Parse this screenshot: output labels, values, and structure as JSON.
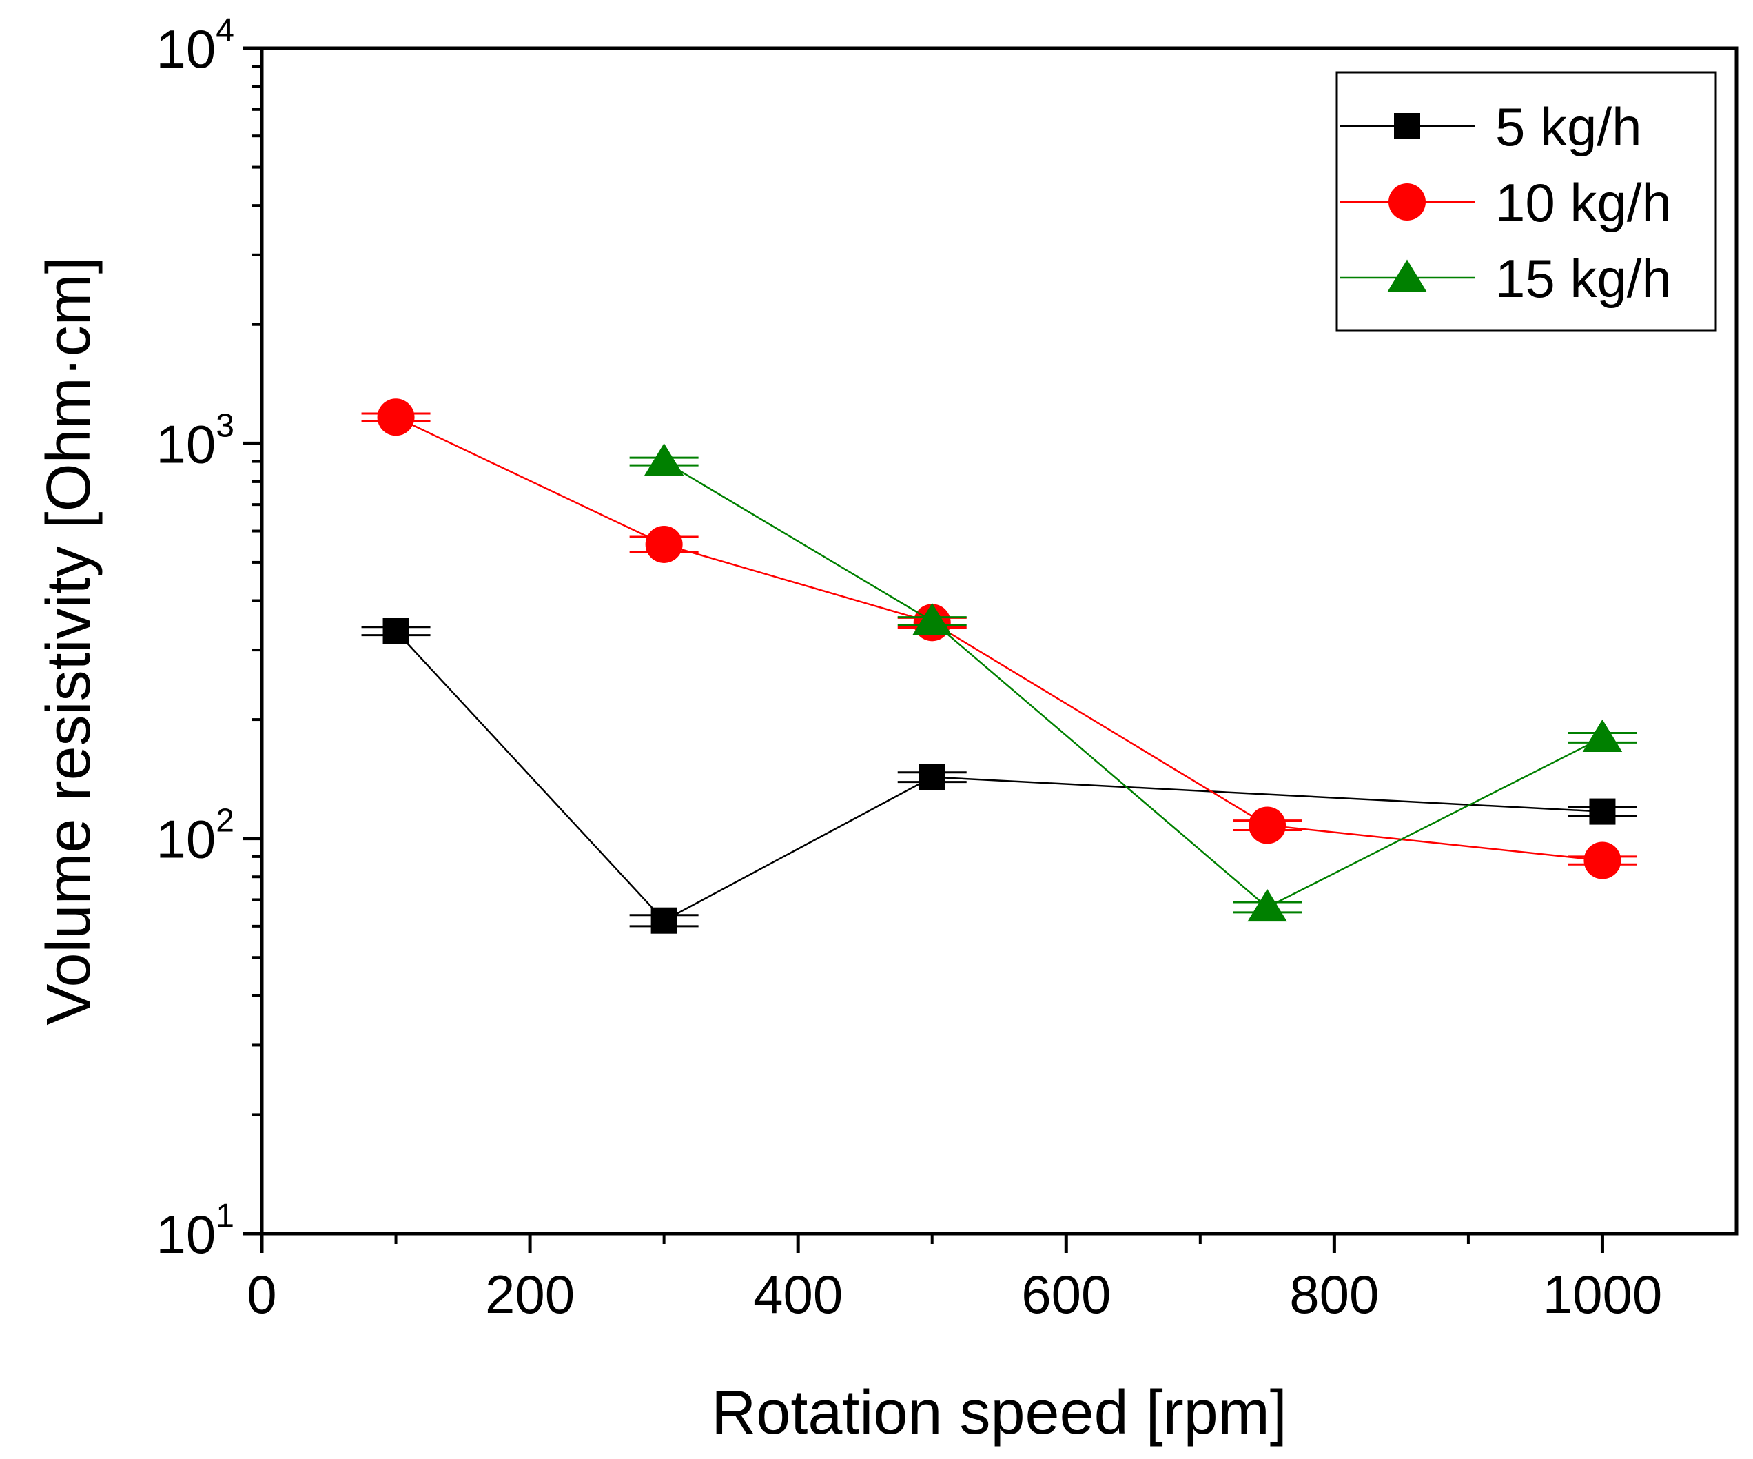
{
  "chart_data": {
    "type": "line",
    "title": "",
    "xlabel": "Rotation speed [rpm]",
    "ylabel": "Volume resistivity [Ohm·cm]",
    "xlim": [
      0,
      1100
    ],
    "ylim": [
      10,
      10000
    ],
    "yscale": "log",
    "x_ticks": [
      0,
      200,
      400,
      600,
      800,
      1000
    ],
    "x_tick_labels": [
      "0",
      "200",
      "400",
      "600",
      "800",
      "1000"
    ],
    "y_ticks": [
      10,
      100,
      1000,
      10000
    ],
    "y_tick_labels": [
      {
        "base": "10",
        "exp": "1"
      },
      {
        "base": "10",
        "exp": "2"
      },
      {
        "base": "10",
        "exp": "3"
      },
      {
        "base": "10",
        "exp": "4"
      }
    ],
    "legend_position": "top-right",
    "grid": false,
    "series": [
      {
        "name": "5 kg/h",
        "color": "#000000",
        "marker": "square",
        "x": [
          100,
          300,
          500,
          1000
        ],
        "values": [
          335,
          62,
          143,
          117
        ],
        "errors": [
          8,
          2,
          4,
          3
        ]
      },
      {
        "name": "10 kg/h",
        "color": "#ff0000",
        "marker": "circle",
        "x": [
          100,
          300,
          500,
          750,
          1000
        ],
        "values": [
          1165,
          555,
          352,
          108,
          88
        ],
        "errors": [
          25,
          25,
          10,
          3,
          2
        ]
      },
      {
        "name": "15 kg/h",
        "color": "#008000",
        "marker": "triangle",
        "x": [
          300,
          500,
          750,
          1000
        ],
        "values": [
          900,
          355,
          67,
          180
        ],
        "errors": [
          20,
          8,
          2,
          5
        ]
      }
    ]
  }
}
